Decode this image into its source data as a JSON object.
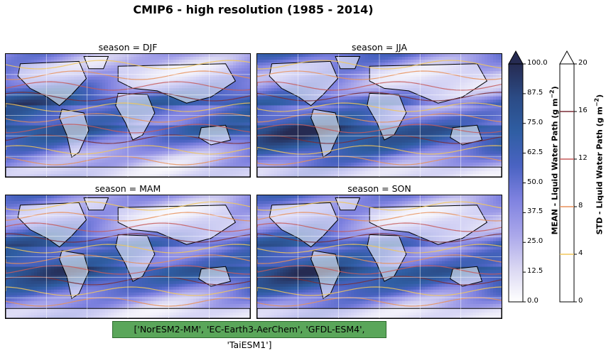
{
  "figure": {
    "title": "CMIP6 - high resolution (1985 - 2014)",
    "models_label": "['NorESM2-MM', 'EC-Earth3-AerChem', 'GFDL-ESM4', 'TaiESM1']"
  },
  "panels": [
    {
      "title": "season = DJF",
      "season": "DJF"
    },
    {
      "title": "season = JJA",
      "season": "JJA"
    },
    {
      "title": "season = MAM",
      "season": "MAM"
    },
    {
      "title": "season = SON",
      "season": "SON"
    }
  ],
  "chart_data": {
    "type": "heatmap",
    "title": "CMIP6 - high resolution (1985 - 2014)",
    "panels": [
      "season = DJF",
      "season = JJA",
      "season = MAM",
      "season = SON"
    ],
    "mean_colorbar": {
      "label": "MEAN - Liquid Water Path (g m$^{-2}$)",
      "label_main": "MEAN - Liquid Water Path (g m",
      "label_exp": "−2",
      "label_close": ")",
      "range": [
        0.0,
        100.0
      ],
      "ticks": [
        "0.0",
        "12.5",
        "25.0",
        "37.5",
        "50.0",
        "62.5",
        "75.0",
        "87.5",
        "100.0"
      ],
      "extend": "max",
      "colormap": [
        "#ffffff",
        "#d9d6f2",
        "#a9a6ea",
        "#7f82e0",
        "#4a63c2",
        "#2f5ea3",
        "#2b4b86",
        "#262b52"
      ]
    },
    "std_colorbar": {
      "label": "STD - Liquid Water Path (g m$^{-2}$)",
      "label_main": "STD - Liquid Water Path (g m",
      "label_exp": "−2",
      "label_close": ")",
      "range": [
        0,
        20
      ],
      "ticks": [
        "0",
        "4",
        "8",
        "12",
        "16",
        "20"
      ],
      "contour_levels": [
        4,
        8,
        12,
        16
      ],
      "contour_colors": [
        "#f2c75c",
        "#e8905a",
        "#c55a5a",
        "#7a2d36"
      ],
      "extend": "max"
    }
  }
}
